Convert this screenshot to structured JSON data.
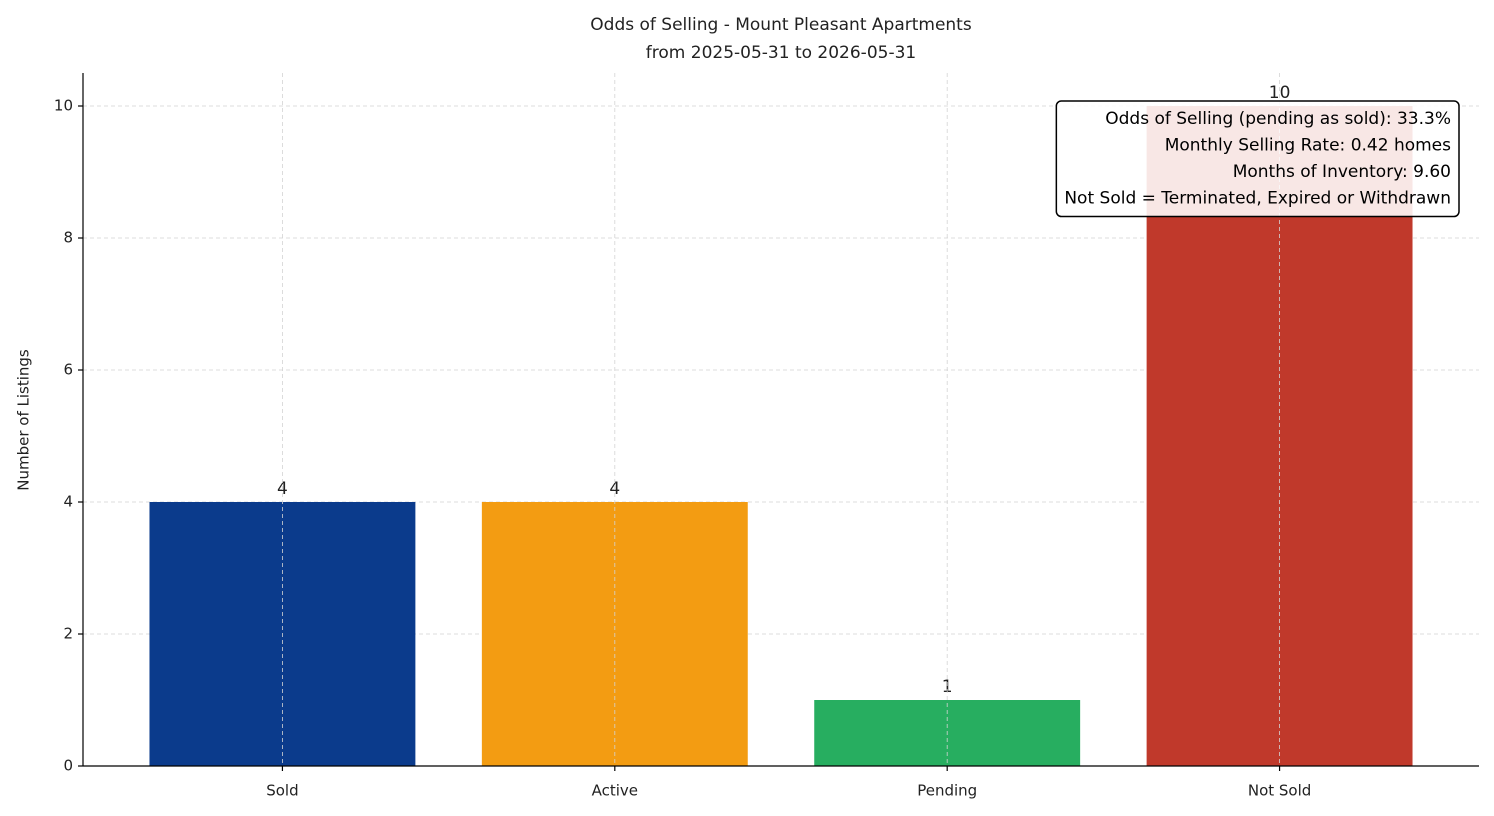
{
  "chart_data": {
    "type": "bar",
    "title": "Odds of Selling - Mount Pleasant Apartments",
    "subtitle": "from 2025-05-31 to 2026-05-31",
    "y_label": "Number of Listings",
    "categories": [
      "Sold",
      "Active",
      "Pending",
      "Not Sold"
    ],
    "values": [
      4,
      4,
      1,
      10
    ],
    "colors": [
      "#0b3b8c",
      "#f39c12",
      "#27ae60",
      "#c0392b"
    ],
    "ylim": [
      0,
      10.5
    ],
    "yticks": [
      0,
      2,
      4,
      6,
      8,
      10
    ],
    "grid": true,
    "annotations": [
      "Odds of Selling (pending as sold): 33.3%",
      "Monthly Selling Rate: 0.42 homes",
      "Months of Inventory: 9.60",
      "Not Sold = Terminated, Expired or Withdrawn"
    ]
  }
}
